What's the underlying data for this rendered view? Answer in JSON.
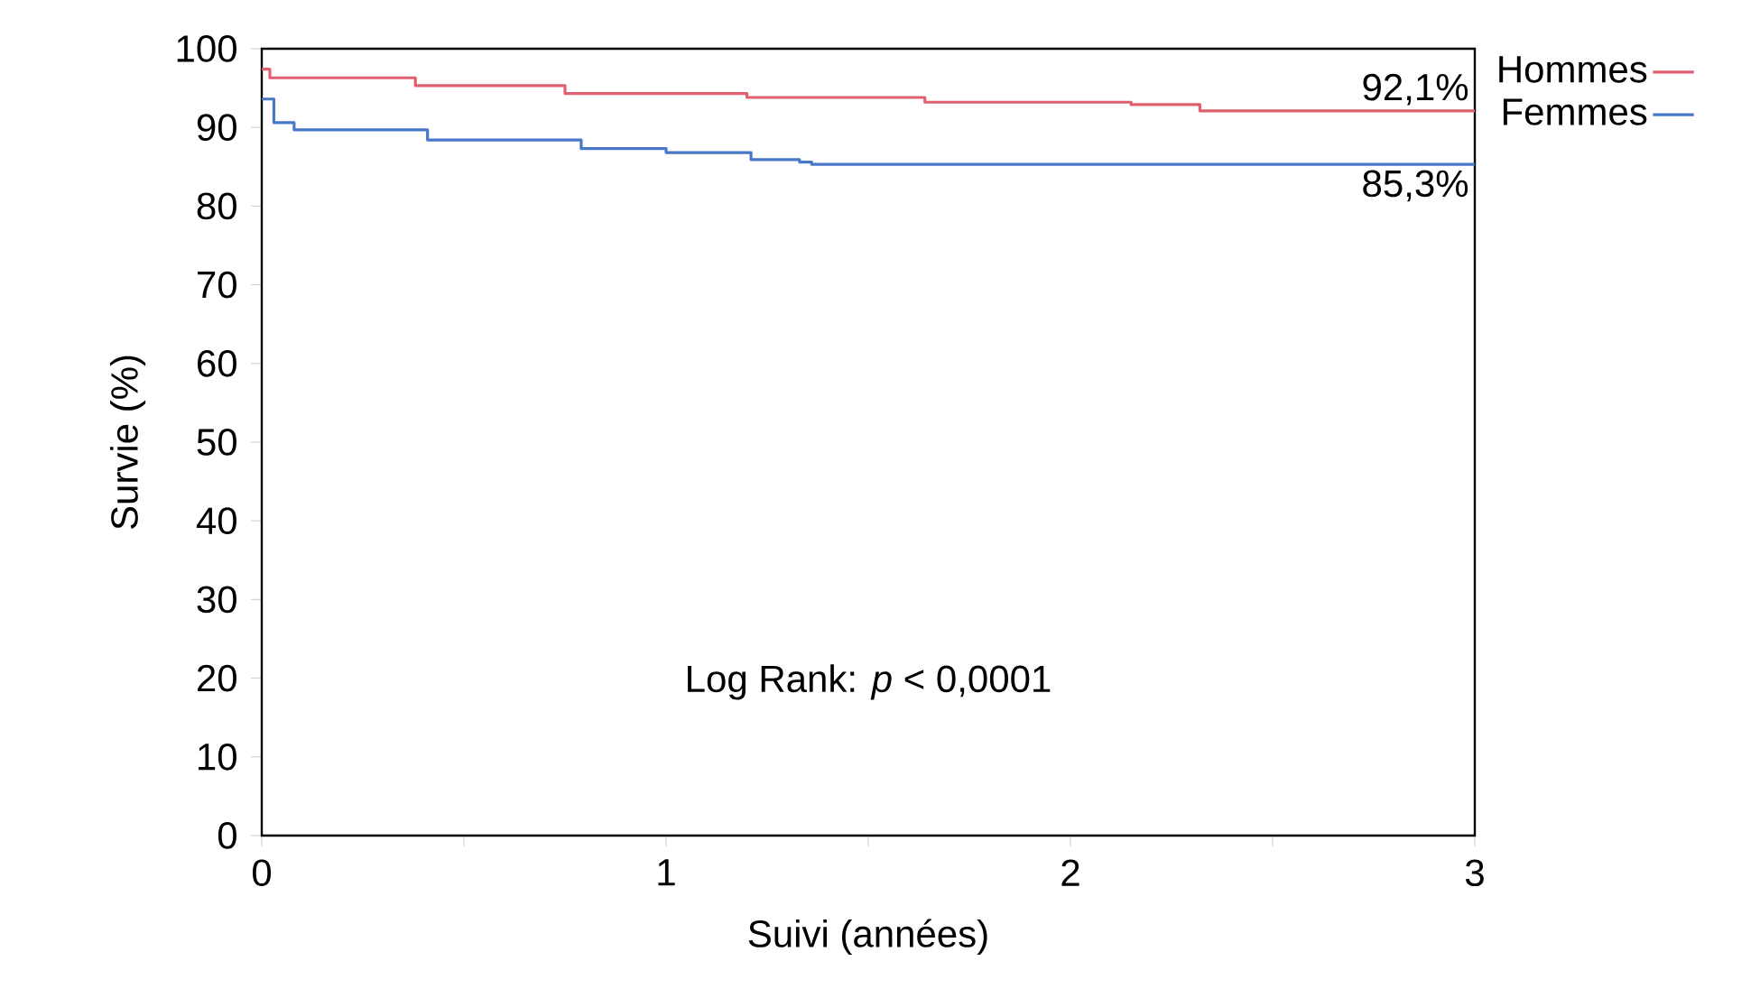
{
  "chart_data": {
    "type": "step",
    "xlabel": "Suivi (années)",
    "ylabel": "Survie (%)",
    "xlim": [
      0,
      3
    ],
    "ylim": [
      0,
      100
    ],
    "xticks": [
      0,
      {
        "value": 0.5,
        "label": null
      },
      1,
      {
        "value": 1.5,
        "label": null
      },
      2,
      {
        "value": 2.5,
        "label": null
      },
      3
    ],
    "yticks": [
      0,
      10,
      20,
      30,
      40,
      50,
      60,
      70,
      80,
      90,
      100
    ],
    "grid": false,
    "legend": "top right",
    "marker": "none",
    "line_style": "solid",
    "series": [
      {
        "name": "Hommes",
        "color": "#e06070",
        "x": [
          0,
          0.02,
          0.38,
          0.75,
          1.2,
          1.64,
          2.15,
          2.32,
          3
        ],
        "values": [
          97.4,
          96.3,
          95.3,
          94.3,
          93.8,
          93.2,
          92.9,
          92.1,
          92.1
        ]
      },
      {
        "name": "Femmes",
        "color": "#4a78c8",
        "x": [
          0,
          0.03,
          0.08,
          0.41,
          0.79,
          1.0,
          1.21,
          1.33,
          1.36,
          3
        ],
        "values": [
          93.6,
          90.6,
          89.7,
          88.4,
          87.3,
          86.8,
          85.9,
          85.6,
          85.3,
          85.3
        ]
      }
    ],
    "annotations": [
      {
        "text": "92,1%",
        "x": 3,
        "y": 92.1
      },
      {
        "text": "85,3%",
        "x": 3,
        "y": 85.3
      },
      "Log Rank: *p* < 0,0001"
    ]
  }
}
